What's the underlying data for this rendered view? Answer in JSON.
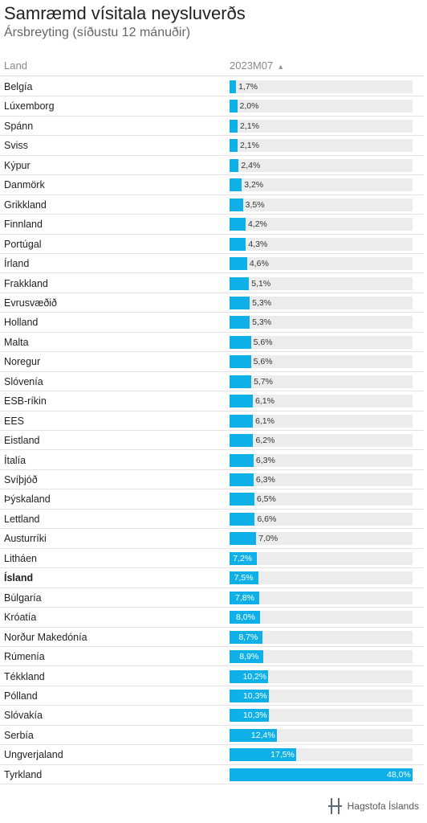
{
  "header": {
    "title": "Samræmd vísitala neysluverðs",
    "subtitle": "Ársbreyting (síðustu 12 mánuðir)",
    "col_land": "Land",
    "col_series": "2023M07",
    "sort_icon": "sort-ascending-icon"
  },
  "footer": {
    "logo_text": "Hagstofa Íslands",
    "logo_icon": "hagstofa-logo-icon"
  },
  "colors": {
    "bar": "#0fb0e8",
    "track": "#ececec"
  },
  "chart_data": {
    "type": "bar",
    "orientation": "horizontal",
    "title": "Samræmd vísitala neysluverðs",
    "subtitle": "Ársbreyting (síðustu 12 mánuðir)",
    "xlim": [
      0,
      48
    ],
    "highlight": "Ísland",
    "categories": [
      "Belgía",
      "Lúxemborg",
      "Spánn",
      "Sviss",
      "Kýpur",
      "Danmörk",
      "Grikkland",
      "Finnland",
      "Portúgal",
      "Írland",
      "Frakkland",
      "Evrusvæðið",
      "Holland",
      "Malta",
      "Noregur",
      "Slóvenía",
      "ESB-ríkin",
      "EES",
      "Eistland",
      "Ítalía",
      "Svíþjóð",
      "Þýskaland",
      "Lettland",
      "Austurríki",
      "Litháen",
      "Ísland",
      "Búlgaría",
      "Króatía",
      "Norður Makedónía",
      "Rúmenía",
      "Tékkland",
      "Pólland",
      "Slóvakía",
      "Serbía",
      "Ungverjaland",
      "Tyrkland"
    ],
    "series": [
      {
        "name": "2023M07",
        "values": [
          1.7,
          2.0,
          2.1,
          2.1,
          2.4,
          3.2,
          3.5,
          4.2,
          4.3,
          4.6,
          5.1,
          5.3,
          5.3,
          5.6,
          5.6,
          5.7,
          6.1,
          6.1,
          6.2,
          6.3,
          6.3,
          6.5,
          6.6,
          7.0,
          7.2,
          7.5,
          7.8,
          8.0,
          8.7,
          8.9,
          10.2,
          10.3,
          10.3,
          12.4,
          17.5,
          48.0
        ],
        "labels": [
          "1,7%",
          "2,0%",
          "2,1%",
          "2,1%",
          "2,4%",
          "3,2%",
          "3,5%",
          "4,2%",
          "4,3%",
          "4,6%",
          "5,1%",
          "5,3%",
          "5,3%",
          "5,6%",
          "5,6%",
          "5,7%",
          "6,1%",
          "6,1%",
          "6,2%",
          "6,3%",
          "6,3%",
          "6,5%",
          "6,6%",
          "7,0%",
          "7,2%",
          "7,5%",
          "7,8%",
          "8,0%",
          "8,7%",
          "8,9%",
          "10,2%",
          "10,3%",
          "10,3%",
          "12,4%",
          "17,5%",
          "48,0%"
        ]
      }
    ]
  }
}
